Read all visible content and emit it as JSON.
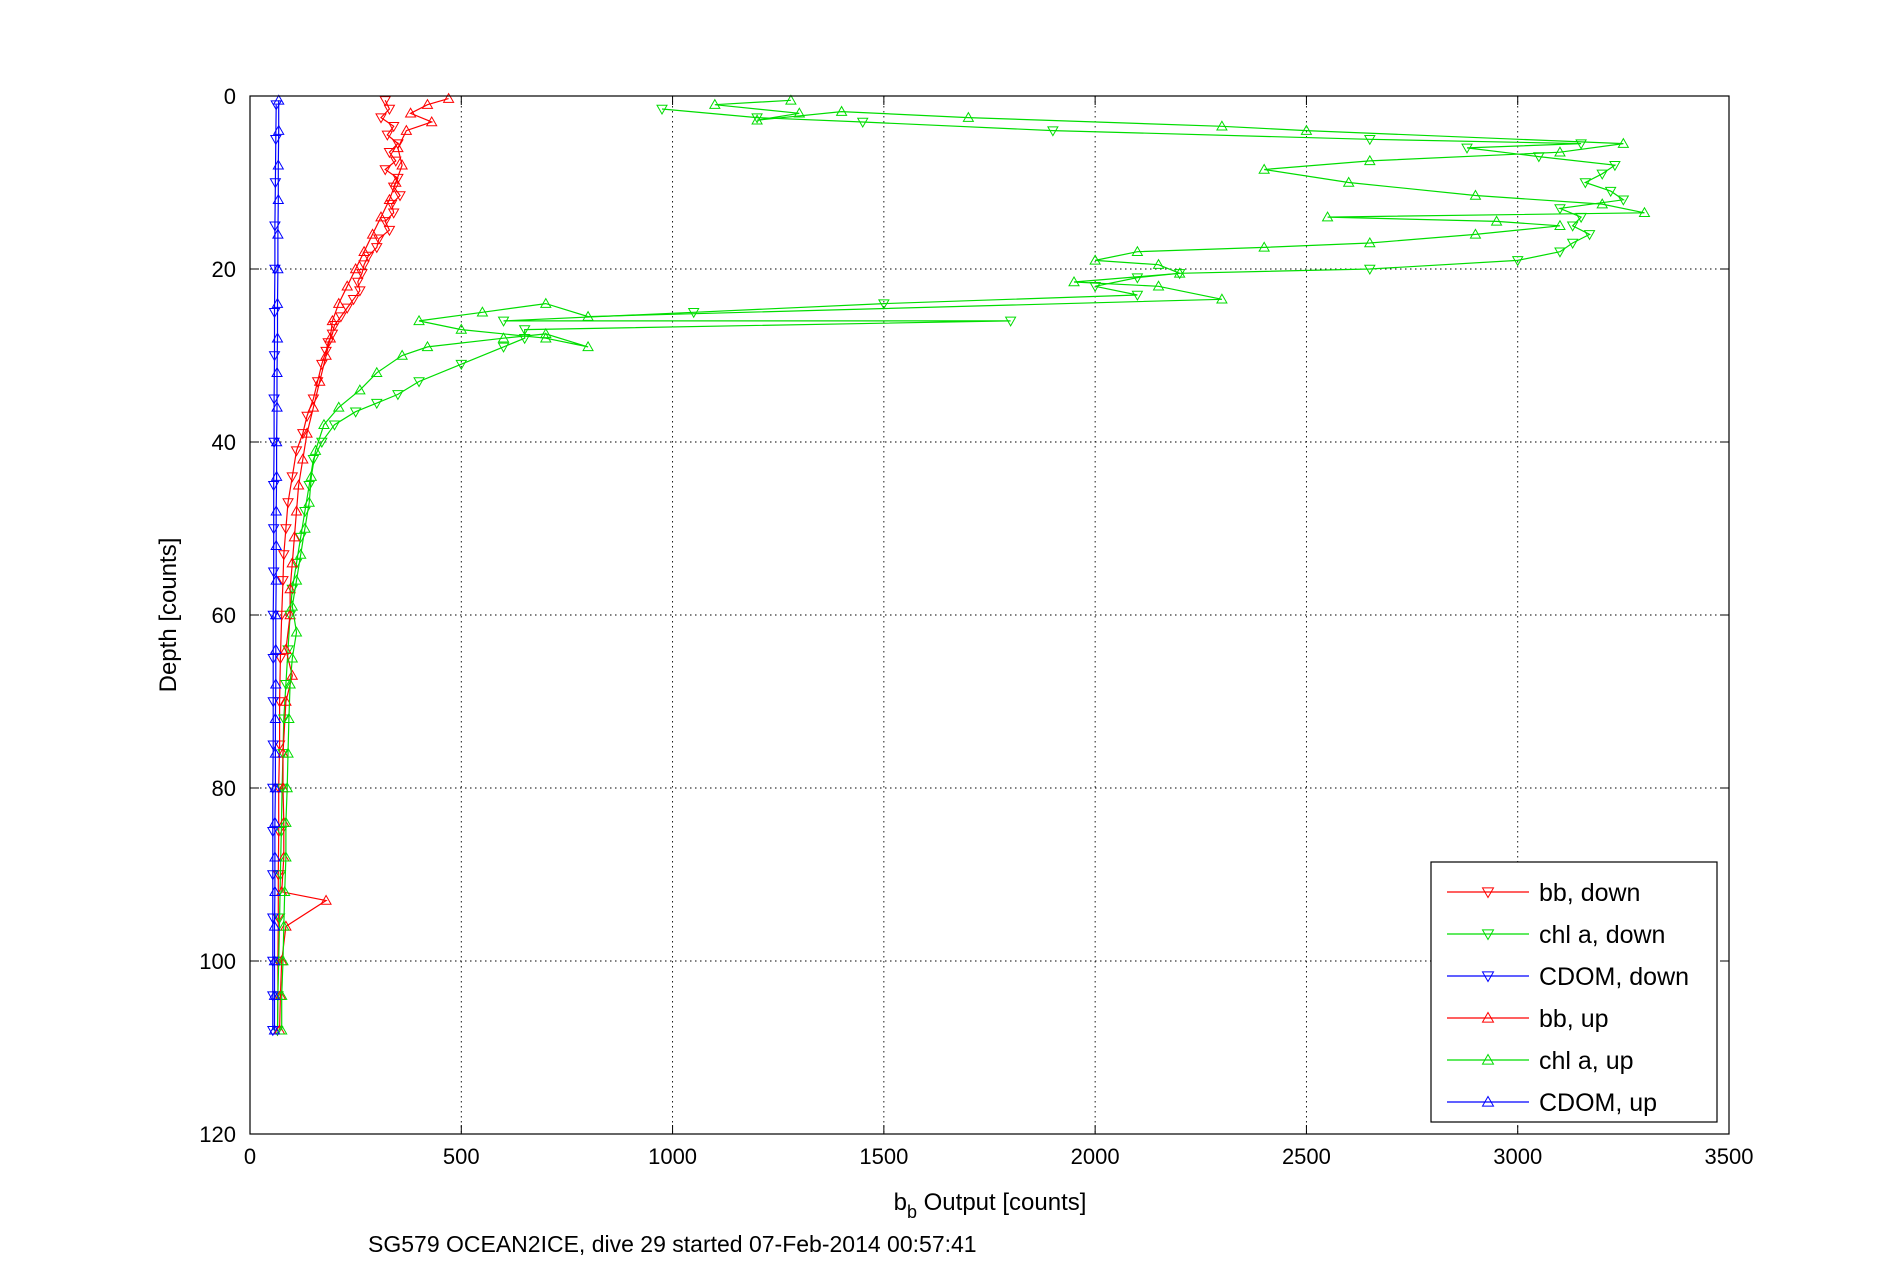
{
  "chart_data": {
    "type": "line",
    "xlabel_main": "b",
    "xlabel_sub": "b",
    "xlabel_rest": " Output [counts]",
    "ylabel": "Depth [counts]",
    "caption": "SG579 OCEAN2ICE, dive 29 started 07-Feb-2014 00:57:41",
    "xlim": [
      0,
      3500
    ],
    "ylim": [
      0,
      120
    ],
    "y_reversed": true,
    "grid": true,
    "legend_position": "bottom-right",
    "x_ticks": [
      "0",
      "500",
      "1000",
      "1500",
      "2000",
      "2500",
      "3000",
      "3500"
    ],
    "y_ticks": [
      "0",
      "20",
      "40",
      "60",
      "80",
      "100",
      "120"
    ],
    "series": [
      {
        "name": "bb, down",
        "color": "#ff0000",
        "marker": "triangle-down",
        "points": [
          [
            320,
            0.5
          ],
          [
            330,
            1.5
          ],
          [
            310,
            2.5
          ],
          [
            340,
            3.5
          ],
          [
            325,
            4.5
          ],
          [
            350,
            5.5
          ],
          [
            330,
            6.5
          ],
          [
            345,
            7.5
          ],
          [
            320,
            8.5
          ],
          [
            350,
            9.5
          ],
          [
            340,
            10.5
          ],
          [
            355,
            11.5
          ],
          [
            335,
            12.5
          ],
          [
            340,
            13.5
          ],
          [
            320,
            14.5
          ],
          [
            330,
            15.5
          ],
          [
            305,
            16.5
          ],
          [
            300,
            17.5
          ],
          [
            280,
            18.5
          ],
          [
            270,
            19.5
          ],
          [
            265,
            20.5
          ],
          [
            255,
            21.5
          ],
          [
            260,
            22.5
          ],
          [
            245,
            23.5
          ],
          [
            230,
            24.5
          ],
          [
            215,
            25.5
          ],
          [
            200,
            26.5
          ],
          [
            195,
            27.5
          ],
          [
            185,
            28.5
          ],
          [
            180,
            29.5
          ],
          [
            170,
            31
          ],
          [
            160,
            33
          ],
          [
            150,
            35
          ],
          [
            135,
            37
          ],
          [
            125,
            39
          ],
          [
            110,
            41
          ],
          [
            100,
            44
          ],
          [
            90,
            47
          ],
          [
            85,
            50
          ],
          [
            80,
            53
          ],
          [
            78,
            56
          ],
          [
            75,
            60
          ],
          [
            72,
            65
          ],
          [
            70,
            70
          ],
          [
            70,
            75
          ],
          [
            68,
            80
          ],
          [
            68,
            85
          ],
          [
            67,
            90
          ],
          [
            67,
            95
          ],
          [
            66,
            100
          ],
          [
            66,
            104
          ],
          [
            65,
            108
          ]
        ]
      },
      {
        "name": "chl a, down",
        "color": "#00dd00",
        "marker": "triangle-down",
        "points": [
          [
            975,
            1.5
          ],
          [
            1200,
            2.5
          ],
          [
            1450,
            3
          ],
          [
            1900,
            4
          ],
          [
            2650,
            5
          ],
          [
            3150,
            5.5
          ],
          [
            2880,
            6
          ],
          [
            3050,
            7
          ],
          [
            3230,
            8
          ],
          [
            3200,
            9
          ],
          [
            3160,
            10
          ],
          [
            3220,
            11
          ],
          [
            3250,
            12
          ],
          [
            3100,
            13
          ],
          [
            3150,
            14
          ],
          [
            3130,
            15
          ],
          [
            3170,
            16
          ],
          [
            3130,
            17
          ],
          [
            3100,
            18
          ],
          [
            3000,
            19
          ],
          [
            2650,
            20
          ],
          [
            2200,
            20.5
          ],
          [
            2100,
            21
          ],
          [
            2000,
            22
          ],
          [
            2100,
            23
          ],
          [
            1500,
            24
          ],
          [
            1050,
            25
          ],
          [
            600,
            26
          ],
          [
            1800,
            26
          ],
          [
            650,
            27
          ],
          [
            650,
            28
          ],
          [
            600,
            29
          ],
          [
            500,
            31
          ],
          [
            400,
            33
          ],
          [
            350,
            34.5
          ],
          [
            300,
            35.5
          ],
          [
            250,
            36.5
          ],
          [
            200,
            38
          ],
          [
            170,
            40
          ],
          [
            150,
            42
          ],
          [
            140,
            45
          ],
          [
            130,
            48
          ],
          [
            120,
            51
          ],
          [
            110,
            54
          ],
          [
            100,
            57
          ],
          [
            95,
            60
          ],
          [
            90,
            64
          ],
          [
            85,
            68
          ],
          [
            80,
            72
          ],
          [
            78,
            76
          ],
          [
            76,
            80
          ],
          [
            74,
            85
          ],
          [
            72,
            90
          ],
          [
            70,
            95
          ],
          [
            68,
            100
          ],
          [
            66,
            104
          ],
          [
            65,
            108
          ]
        ]
      },
      {
        "name": "CDOM, down",
        "color": "#0000ff",
        "marker": "triangle-down",
        "points": [
          [
            62,
            1
          ],
          [
            61,
            5
          ],
          [
            60,
            10
          ],
          [
            59,
            15
          ],
          [
            59,
            20
          ],
          [
            58,
            25
          ],
          [
            58,
            30
          ],
          [
            57,
            35
          ],
          [
            57,
            40
          ],
          [
            56,
            45
          ],
          [
            56,
            50
          ],
          [
            56,
            55
          ],
          [
            55,
            60
          ],
          [
            55,
            65
          ],
          [
            55,
            70
          ],
          [
            55,
            75
          ],
          [
            54,
            80
          ],
          [
            54,
            85
          ],
          [
            54,
            90
          ],
          [
            54,
            95
          ],
          [
            54,
            100
          ],
          [
            54,
            104
          ],
          [
            54,
            108
          ]
        ]
      },
      {
        "name": "bb, up",
        "color": "#ff0000",
        "marker": "triangle-up",
        "points": [
          [
            70,
            108
          ],
          [
            72,
            104
          ],
          [
            75,
            100
          ],
          [
            85,
            96
          ],
          [
            180,
            93
          ],
          [
            75,
            92
          ],
          [
            80,
            88
          ],
          [
            80,
            84
          ],
          [
            78,
            80
          ],
          [
            78,
            76
          ],
          [
            85,
            70
          ],
          [
            100,
            67
          ],
          [
            85,
            64
          ],
          [
            95,
            60
          ],
          [
            95,
            57
          ],
          [
            100,
            54
          ],
          [
            105,
            51
          ],
          [
            110,
            48
          ],
          [
            115,
            45
          ],
          [
            125,
            42
          ],
          [
            135,
            39
          ],
          [
            150,
            36
          ],
          [
            165,
            33
          ],
          [
            180,
            30
          ],
          [
            190,
            28
          ],
          [
            195,
            26
          ],
          [
            210,
            24
          ],
          [
            230,
            22
          ],
          [
            250,
            20
          ],
          [
            270,
            18
          ],
          [
            290,
            16
          ],
          [
            310,
            14
          ],
          [
            330,
            12
          ],
          [
            345,
            10
          ],
          [
            360,
            8
          ],
          [
            350,
            6
          ],
          [
            370,
            4
          ],
          [
            430,
            3
          ],
          [
            380,
            2
          ],
          [
            420,
            1
          ],
          [
            470,
            0.3
          ]
        ]
      },
      {
        "name": "chl a, up",
        "color": "#00dd00",
        "marker": "triangle-up",
        "points": [
          [
            75,
            108
          ],
          [
            75,
            104
          ],
          [
            78,
            100
          ],
          [
            80,
            96
          ],
          [
            82,
            92
          ],
          [
            85,
            88
          ],
          [
            85,
            84
          ],
          [
            88,
            80
          ],
          [
            90,
            76
          ],
          [
            92,
            72
          ],
          [
            95,
            68
          ],
          [
            100,
            65
          ],
          [
            110,
            62
          ],
          [
            100,
            59
          ],
          [
            110,
            56
          ],
          [
            120,
            53
          ],
          [
            130,
            50
          ],
          [
            140,
            47
          ],
          [
            145,
            44
          ],
          [
            155,
            41
          ],
          [
            175,
            38
          ],
          [
            210,
            36
          ],
          [
            260,
            34
          ],
          [
            300,
            32
          ],
          [
            360,
            30
          ],
          [
            420,
            29
          ],
          [
            600,
            28
          ],
          [
            700,
            27.5
          ],
          [
            800,
            29
          ],
          [
            700,
            28
          ],
          [
            500,
            27
          ],
          [
            400,
            26
          ],
          [
            550,
            25
          ],
          [
            700,
            24
          ],
          [
            800,
            25.5
          ],
          [
            2300,
            23.5
          ],
          [
            2150,
            22
          ],
          [
            1950,
            21.5
          ],
          [
            2200,
            20.5
          ],
          [
            2150,
            19.5
          ],
          [
            2000,
            19
          ],
          [
            2100,
            18
          ],
          [
            2400,
            17.5
          ],
          [
            2650,
            17
          ],
          [
            2900,
            16
          ],
          [
            3100,
            15
          ],
          [
            2950,
            14.5
          ],
          [
            2550,
            14
          ],
          [
            3300,
            13.5
          ],
          [
            3200,
            12.5
          ],
          [
            2900,
            11.5
          ],
          [
            2600,
            10
          ],
          [
            2400,
            8.5
          ],
          [
            2650,
            7.5
          ],
          [
            3100,
            6.5
          ],
          [
            3250,
            5.5
          ],
          [
            2500,
            4
          ],
          [
            2300,
            3.5
          ],
          [
            1700,
            2.5
          ],
          [
            1400,
            1.8
          ],
          [
            1200,
            2.8
          ],
          [
            1300,
            2
          ],
          [
            1100,
            1
          ],
          [
            1280,
            0.5
          ]
        ]
      },
      {
        "name": "CDOM, up",
        "color": "#0000ff",
        "marker": "triangle-up",
        "points": [
          [
            58,
            108
          ],
          [
            58,
            104
          ],
          [
            58,
            100
          ],
          [
            58,
            96
          ],
          [
            59,
            92
          ],
          [
            59,
            88
          ],
          [
            59,
            84
          ],
          [
            60,
            80
          ],
          [
            60,
            76
          ],
          [
            60,
            72
          ],
          [
            61,
            68
          ],
          [
            61,
            64
          ],
          [
            61,
            60
          ],
          [
            62,
            56
          ],
          [
            62,
            52
          ],
          [
            62,
            48
          ],
          [
            63,
            44
          ],
          [
            63,
            40
          ],
          [
            64,
            36
          ],
          [
            64,
            32
          ],
          [
            65,
            28
          ],
          [
            65,
            24
          ],
          [
            66,
            20
          ],
          [
            66,
            16
          ],
          [
            67,
            12
          ],
          [
            67,
            8
          ],
          [
            68,
            4
          ],
          [
            68,
            0.5
          ]
        ]
      }
    ]
  }
}
